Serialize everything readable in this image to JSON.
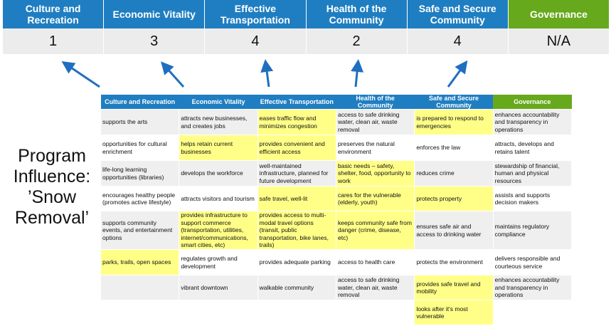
{
  "categories": [
    "Culture and Recreation",
    "Economic Vitality",
    "Effective Transportation",
    "Health of the Community",
    "Safe and Secure Community",
    "Governance"
  ],
  "scores": [
    "1",
    "3",
    "4",
    "2",
    "4",
    "N/A"
  ],
  "side_label": "Program Influence: ’Snow Removal’",
  "colors": {
    "header_blue": "#1f7ec1",
    "governance_green": "#67a91c",
    "highlight": "#ffff88",
    "arrow": "#1f6fc0"
  },
  "table": {
    "headers": [
      "Culture and Recreation",
      "Economic Vitality",
      "Effective Transportation",
      "Health of the Community",
      "Safe and Secure Community",
      "Governance"
    ],
    "rows": [
      [
        {
          "t": "supports the arts"
        },
        {
          "t": "attracts new businesses, and creates jobs"
        },
        {
          "t": "eases traffic flow and minimizes congestion",
          "h": true
        },
        {
          "t": "access to safe drinking water, clean air, waste removal"
        },
        {
          "t": "is prepared to respond to emergencies",
          "h": true
        },
        {
          "t": "enhances accountability and transparency in operations"
        }
      ],
      [
        {
          "t": "opportunities for cultural enrichment"
        },
        {
          "t": "helps retain current businesses",
          "h": true
        },
        {
          "t": "provides convenient and efficient access",
          "h": true
        },
        {
          "t": "preserves the natural environment"
        },
        {
          "t": "enforces the law"
        },
        {
          "t": "attracts, develops and retains talent"
        }
      ],
      [
        {
          "t": "life-long learning opportunities (libraries)"
        },
        {
          "t": "develops the workforce"
        },
        {
          "t": "well-maintained infrastructure, planned for future development"
        },
        {
          "t": "basic needs – safety, shelter, food, opportunity to work",
          "h": true
        },
        {
          "t": "reduces crime"
        },
        {
          "t": "stewardship of financial, human and physical resources"
        }
      ],
      [
        {
          "t": "encourages healthy people (promotes active lifestyle)"
        },
        {
          "t": "attracts visitors and tourism"
        },
        {
          "t": "safe travel, well-lit",
          "h": true
        },
        {
          "t": "cares for the vulnerable (elderly, youth)",
          "h": true
        },
        {
          "t": "protects property",
          "h": true
        },
        {
          "t": "assists and supports decision makers"
        }
      ],
      [
        {
          "t": "supports community events, and entertainment options"
        },
        {
          "t": "provides infrastructure to support commerce (transportation, utilities, internet/communications, smart cities, etc)",
          "h": true
        },
        {
          "t": "provides access to multi-modal travel options (transit, public transportation, bike lanes, trails)",
          "h": true
        },
        {
          "t": "keeps community safe from danger (crime, disease, etc)",
          "h": true
        },
        {
          "t": "ensures safe air and access to drinking water"
        },
        {
          "t": "maintains regulatory compliance"
        }
      ],
      [
        {
          "t": "parks, trails, open spaces",
          "h": true
        },
        {
          "t": "regulates growth and development"
        },
        {
          "t": "provides adequate parking"
        },
        {
          "t": "access to health care"
        },
        {
          "t": "protects the environment"
        },
        {
          "t": "delivers responsible and courteous service"
        }
      ],
      [
        {
          "t": ""
        },
        {
          "t": "vibrant downtown"
        },
        {
          "t": "walkable community"
        },
        {
          "t": "access to safe drinking water, clean air, waste removal"
        },
        {
          "t": "provides safe travel and mobility",
          "h": true
        },
        {
          "t": "enhances accountability and transparency in operations"
        }
      ],
      [
        {
          "t": ""
        },
        {
          "t": ""
        },
        {
          "t": ""
        },
        {
          "t": ""
        },
        {
          "t": "looks after it's most vulnerable",
          "h": true
        },
        {
          "t": ""
        }
      ]
    ]
  }
}
